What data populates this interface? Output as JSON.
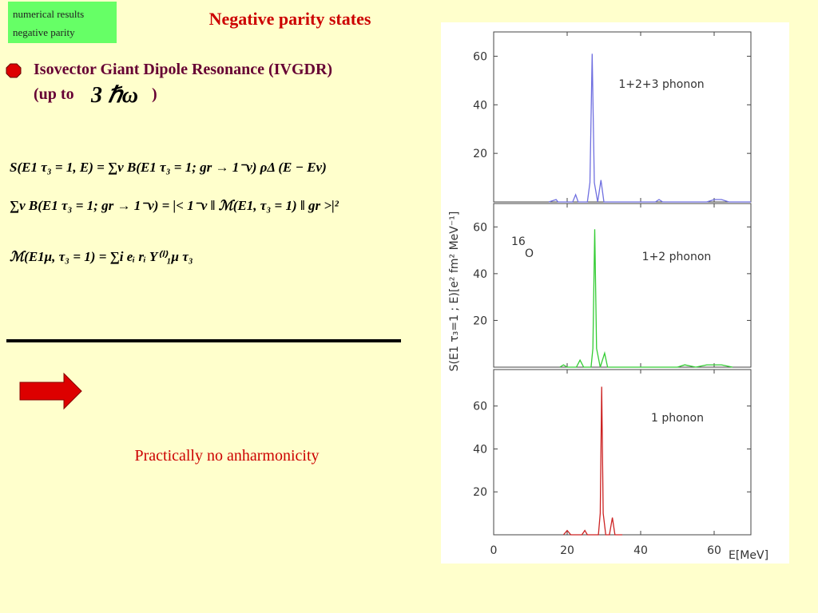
{
  "header": {
    "tag_lines": [
      "numerical results",
      "negative parity"
    ],
    "title": "Negative parity states"
  },
  "bullet": {
    "text": "Isovector Giant Dipole Resonance (IVGDR)",
    "prefix": "(up to",
    "math": "3 ℏω",
    "suffix": ")"
  },
  "equations": [
    "S(E1 τ₃ = 1, E) = ∑ν B(E1 τ₃ = 1; gr → 1⁻ν) ρΔ (E − Eν)",
    "∑ν B(E1 τ₃ = 1; gr → 1⁻ν) = |< 1⁻ν ‖ ℳ(E1, τ₃ = 1) ‖ gr >|²",
    "ℳ(E1μ, τ₃ = 1) = ∑i eᵢ rᵢ Y⁽ⁱ⁾₁μ τ₃"
  ],
  "conclusion": "Practically no anharmonicity",
  "chart_data": [
    {
      "type": "line",
      "annotation": "1+2+3 phonon",
      "color": "#6f6fe0",
      "x": [
        15,
        17,
        17.5,
        18,
        21.5,
        22.3,
        23,
        25.5,
        26.2,
        26.8,
        27.4,
        28.3,
        29.2,
        30,
        32,
        44,
        45,
        46,
        58,
        60,
        62,
        64,
        70
      ],
      "values": [
        0,
        1,
        0,
        0,
        0,
        3,
        0,
        0,
        8,
        61,
        8,
        0,
        9,
        0,
        0,
        0,
        1,
        0,
        0,
        1,
        1,
        0,
        0
      ],
      "xlim": [
        0,
        70
      ],
      "ylim": [
        0,
        70
      ],
      "yticks": [
        20,
        40,
        60
      ]
    },
    {
      "type": "line",
      "annotation": "1+2 phonon",
      "isotope": {
        "mass": "16",
        "symbol": "O"
      },
      "color": "#33cc33",
      "ylabel": "S(E1 τ₃=1 ; E)[e² fm² MeV⁻¹]",
      "x": [
        18,
        19,
        20,
        22.5,
        23.5,
        24.5,
        26.5,
        27,
        27.5,
        28,
        29,
        30.2,
        31,
        33,
        40,
        50,
        52,
        55,
        58,
        60,
        62,
        65
      ],
      "values": [
        0,
        1,
        0,
        0,
        3,
        0,
        0,
        8,
        59,
        8,
        0,
        6,
        0,
        0,
        0,
        0,
        1,
        0,
        1,
        1,
        1,
        0
      ],
      "xlim": [
        0,
        70
      ],
      "ylim": [
        0,
        70
      ],
      "yticks": [
        20,
        40,
        60
      ]
    },
    {
      "type": "line",
      "annotation": "1 phonon",
      "color": "#cc2222",
      "xlabel": "E[MeV]",
      "x": [
        19,
        20,
        21,
        24,
        24.8,
        25.5,
        28.5,
        29,
        29.4,
        29.8,
        30.5,
        31.5,
        32.3,
        33,
        35
      ],
      "values": [
        0,
        2,
        0,
        0,
        2,
        0,
        0,
        10,
        69,
        10,
        0,
        0,
        8,
        0,
        0
      ],
      "xlim": [
        0,
        70
      ],
      "ylim": [
        0,
        77
      ],
      "yticks": [
        20,
        40,
        60
      ],
      "xticks": [
        0,
        20,
        40,
        60
      ]
    }
  ]
}
